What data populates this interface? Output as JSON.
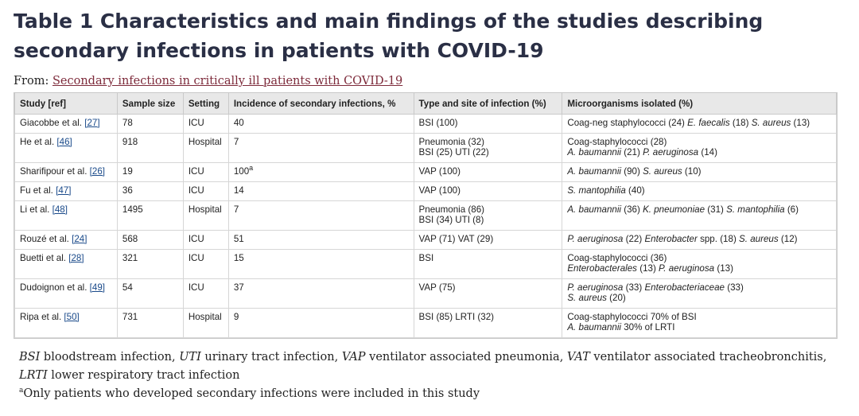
{
  "title": "Table 1 Characteristics and main findings of the studies describing secondary infections in patients with COVID-19",
  "from": {
    "prefix": "From: ",
    "link": "Secondary infections in critically ill patients with COVID-19"
  },
  "table": {
    "headers": [
      "Study [ref]",
      "Sample size",
      "Setting",
      "Incidence of secondary infections, %",
      "Type and site of infection (%)",
      "Microorganisms isolated (%)"
    ],
    "rows": [
      {
        "study": "Giacobbe et al. ",
        "ref": "[27]",
        "sample": "78",
        "setting": "ICU",
        "incidence": "40",
        "sup": "",
        "type": [
          "BSI (100)"
        ],
        "micro": [
          [
            {
              "t": "Coag-neg staphylococci (24) ",
              "i": false
            },
            {
              "t": "E. faecalis",
              "i": true
            },
            {
              "t": " (18) ",
              "i": false
            },
            {
              "t": "S. aureus",
              "i": true
            },
            {
              "t": " (13)",
              "i": false
            }
          ]
        ]
      },
      {
        "study": "He et al. ",
        "ref": "[46]",
        "sample": "918",
        "setting": "Hospital",
        "incidence": "7",
        "sup": "",
        "type": [
          "Pneumonia (32)",
          "BSI (25) UTI (22)"
        ],
        "micro": [
          [
            {
              "t": "Coag-staphylococci (28)",
              "i": false
            }
          ],
          [
            {
              "t": "A. baumannii",
              "i": true
            },
            {
              "t": " (21) ",
              "i": false
            },
            {
              "t": "P. aeruginosa",
              "i": true
            },
            {
              "t": " (14)",
              "i": false
            }
          ]
        ]
      },
      {
        "study": "Sharifipour et al. ",
        "ref": "[26]",
        "sample": "19",
        "setting": "ICU",
        "incidence": "100",
        "sup": "a",
        "type": [
          "VAP (100)"
        ],
        "micro": [
          [
            {
              "t": "A. baumannii",
              "i": true
            },
            {
              "t": " (90) ",
              "i": false
            },
            {
              "t": "S. aureus",
              "i": true
            },
            {
              "t": " (10)",
              "i": false
            }
          ]
        ]
      },
      {
        "study": "Fu et al. ",
        "ref": "[47]",
        "sample": "36",
        "setting": "ICU",
        "incidence": "14",
        "sup": "",
        "type": [
          "VAP (100)"
        ],
        "micro": [
          [
            {
              "t": "S. mantophilia",
              "i": true
            },
            {
              "t": " (40)",
              "i": false
            }
          ]
        ]
      },
      {
        "study": "Li et al. ",
        "ref": "[48]",
        "sample": "1495",
        "setting": "Hospital",
        "incidence": "7",
        "sup": "",
        "type": [
          "Pneumonia (86)",
          "BSI (34) UTI (8)"
        ],
        "micro": [
          [
            {
              "t": "A. baumannii",
              "i": true
            },
            {
              "t": " (36) ",
              "i": false
            },
            {
              "t": "K. pneumoniae",
              "i": true
            },
            {
              "t": " (31) ",
              "i": false
            },
            {
              "t": "S. mantophilia",
              "i": true
            },
            {
              "t": " (6)",
              "i": false
            }
          ]
        ]
      },
      {
        "study": "Rouzé et al. ",
        "ref": "[24]",
        "sample": "568",
        "setting": "ICU",
        "incidence": "51",
        "sup": "",
        "type": [
          "VAP (71) VAT (29)"
        ],
        "micro": [
          [
            {
              "t": "P. aeruginosa",
              "i": true
            },
            {
              "t": " (22) ",
              "i": false
            },
            {
              "t": "Enterobacter",
              "i": true
            },
            {
              "t": " spp. (18) ",
              "i": false
            },
            {
              "t": "S. aureus",
              "i": true
            },
            {
              "t": " (12)",
              "i": false
            }
          ]
        ]
      },
      {
        "study": "Buetti et al. ",
        "ref": "[28]",
        "sample": "321",
        "setting": "ICU",
        "incidence": "15",
        "sup": "",
        "type": [
          "BSI"
        ],
        "micro": [
          [
            {
              "t": "Coag-staphylococci (36)",
              "i": false
            }
          ],
          [
            {
              "t": "Enterobacterales",
              "i": true
            },
            {
              "t": " (13) ",
              "i": false
            },
            {
              "t": "P. aeruginosa",
              "i": true
            },
            {
              "t": " (13)",
              "i": false
            }
          ]
        ]
      },
      {
        "study": "Dudoignon et al. ",
        "ref": "[49]",
        "sample": "54",
        "setting": "ICU",
        "incidence": "37",
        "sup": "",
        "type": [
          "VAP (75)"
        ],
        "micro": [
          [
            {
              "t": "P. aeruginosa",
              "i": true
            },
            {
              "t": " (33) ",
              "i": false
            },
            {
              "t": "Enterobacteriaceae",
              "i": true
            },
            {
              "t": " (33)",
              "i": false
            }
          ],
          [
            {
              "t": "S. aureus",
              "i": true
            },
            {
              "t": " (20)",
              "i": false
            }
          ]
        ]
      },
      {
        "study": "Ripa et al. ",
        "ref": "[50]",
        "sample": "731",
        "setting": "Hospital",
        "incidence": "9",
        "sup": "",
        "type": [
          "BSI (85) LRTI (32)"
        ],
        "micro": [
          [
            {
              "t": "Coag-staphylococci 70% of BSI",
              "i": false
            }
          ],
          [
            {
              "t": "A. baumannii",
              "i": true
            },
            {
              "t": " 30% of LRTI",
              "i": false
            }
          ]
        ]
      }
    ]
  },
  "footnotes": {
    "abbrev": [
      {
        "t": "BSI",
        "i": true
      },
      {
        "t": " bloodstream infection, ",
        "i": false
      },
      {
        "t": "UTI",
        "i": true
      },
      {
        "t": " urinary tract infection, ",
        "i": false
      },
      {
        "t": "VAP",
        "i": true
      },
      {
        "t": " ventilator associated pneumonia, ",
        "i": false
      },
      {
        "t": "VAT",
        "i": true
      },
      {
        "t": " ventilator associated tracheobronchitis, ",
        "i": false
      },
      {
        "t": "LRTI",
        "i": true
      },
      {
        "t": " lower respiratory tract infection",
        "i": false
      }
    ],
    "note_mark": "a",
    "note_text": "Only patients who developed secondary infections were included in this study"
  }
}
